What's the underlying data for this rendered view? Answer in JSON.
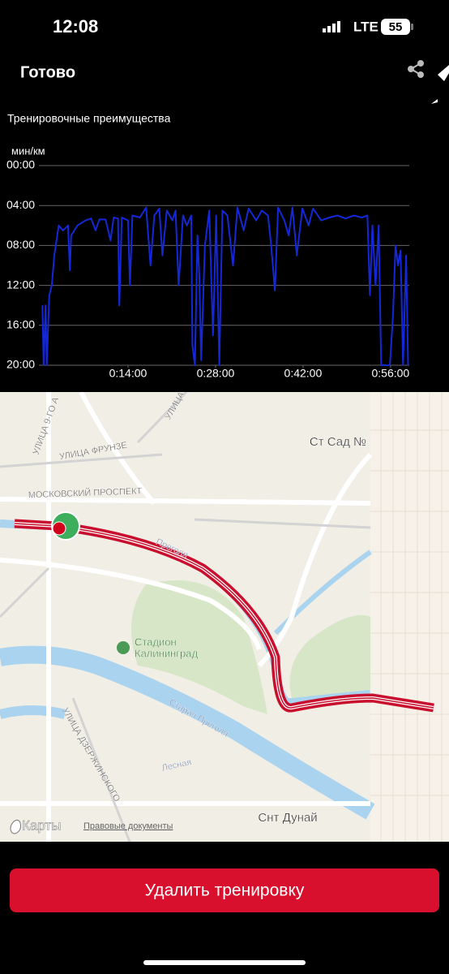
{
  "status_bar": {
    "time": "12:08",
    "network": "LTE",
    "battery": "55"
  },
  "header": {
    "done": "Готово"
  },
  "chart_data": {
    "type": "line",
    "title": "Тренировочные преимущества",
    "y_label": "мин/км",
    "x": [
      0.3,
      0.5,
      0.8,
      1.0,
      1.4,
      1.8,
      2.2,
      2.9,
      3.6,
      4.4,
      4.7,
      4.9,
      5.9,
      7.2,
      8.1,
      8.8,
      9.4,
      10.4,
      11.2,
      11.7,
      12.4,
      12.6,
      13.0,
      14.0,
      14.3,
      14.7,
      15.9,
      16.9,
      17.6,
      18.2,
      19.0,
      19.5,
      20.2,
      21.1,
      21.6,
      22.1,
      22.8,
      23.4,
      24.1,
      24.3,
      24.7,
      25.1,
      25.4,
      25.7,
      26.3,
      27.0,
      27.6,
      28.1,
      28.6,
      29.1,
      29.9,
      30.8,
      31.5,
      32.5,
      33.3,
      34.5,
      35.4,
      36.4,
      36.9,
      37.5,
      38.0,
      39.0,
      39.7,
      40.3,
      41.0,
      41.9,
      42.9,
      43.6,
      44.9,
      46.2,
      47.5,
      48.8,
      50.1,
      51.4,
      52.3,
      52.7,
      53.1,
      53.6,
      54.1,
      54.5,
      55.3,
      55.9,
      56.4,
      56.8,
      57.2,
      57.6,
      58.0,
      58.5,
      58.8
    ],
    "series": [
      {
        "color": "#1428d8",
        "values": [
          14,
          20,
          14,
          20,
          13,
          12,
          9,
          6,
          6.5,
          6,
          10.5,
          7,
          6,
          5.5,
          5.3,
          6.5,
          5.4,
          5.4,
          7.5,
          5.2,
          5.3,
          14,
          5.2,
          5.5,
          12,
          5,
          5.2,
          4.2,
          10,
          5,
          4.3,
          9,
          4.5,
          5.5,
          4.5,
          12,
          5,
          6,
          5,
          18,
          20,
          7,
          11,
          19.5,
          8,
          4.5,
          17,
          5,
          20,
          4.5,
          5,
          10,
          4.2,
          6.5,
          4.3,
          5.5,
          4.5,
          5,
          8,
          12.5,
          4.2,
          5.5,
          7,
          4.2,
          9,
          4.3,
          6,
          4.3,
          5.5,
          5.2,
          5,
          5.3,
          5,
          5.2,
          5,
          13,
          6,
          12,
          6,
          20,
          20,
          20,
          15,
          8,
          10,
          8.5,
          20,
          9,
          20
        ]
      }
    ],
    "xlim": [
      0,
      59
    ],
    "ylim": [
      20,
      0
    ],
    "xticks": [
      {
        "value": 14,
        "label": "0:14:00"
      },
      {
        "value": 28,
        "label": "0:28:00"
      },
      {
        "value": 42,
        "label": "0:42:00"
      },
      {
        "value": 56,
        "label": "0:56:00"
      }
    ],
    "yticks": [
      {
        "value": 0,
        "label": "00:00"
      },
      {
        "value": 4,
        "label": "04:00"
      },
      {
        "value": 8,
        "label": "08:00"
      },
      {
        "value": 12,
        "label": "12:00"
      },
      {
        "value": 16,
        "label": "16:00"
      },
      {
        "value": 20,
        "label": "20:00"
      }
    ],
    "grid": true
  },
  "map": {
    "labels": [
      "УЛИЦА ФРУНЗЕ",
      "МОСКОВСКИЙ ПРОСПЕКТ",
      "Ст Сад №",
      "Преголя",
      "Стадион",
      "Калининград",
      "Старая Преголя",
      "Лесная",
      "УЛИЦА ДЗЕРЖИНСКОГО",
      "Снт Дунай",
      "УЛИЦА 9-ГО А",
      "УЛИЦА"
    ],
    "brand": "Карты",
    "legal": "Правовые документы"
  },
  "actions": {
    "delete": "Удалить тренировку"
  }
}
